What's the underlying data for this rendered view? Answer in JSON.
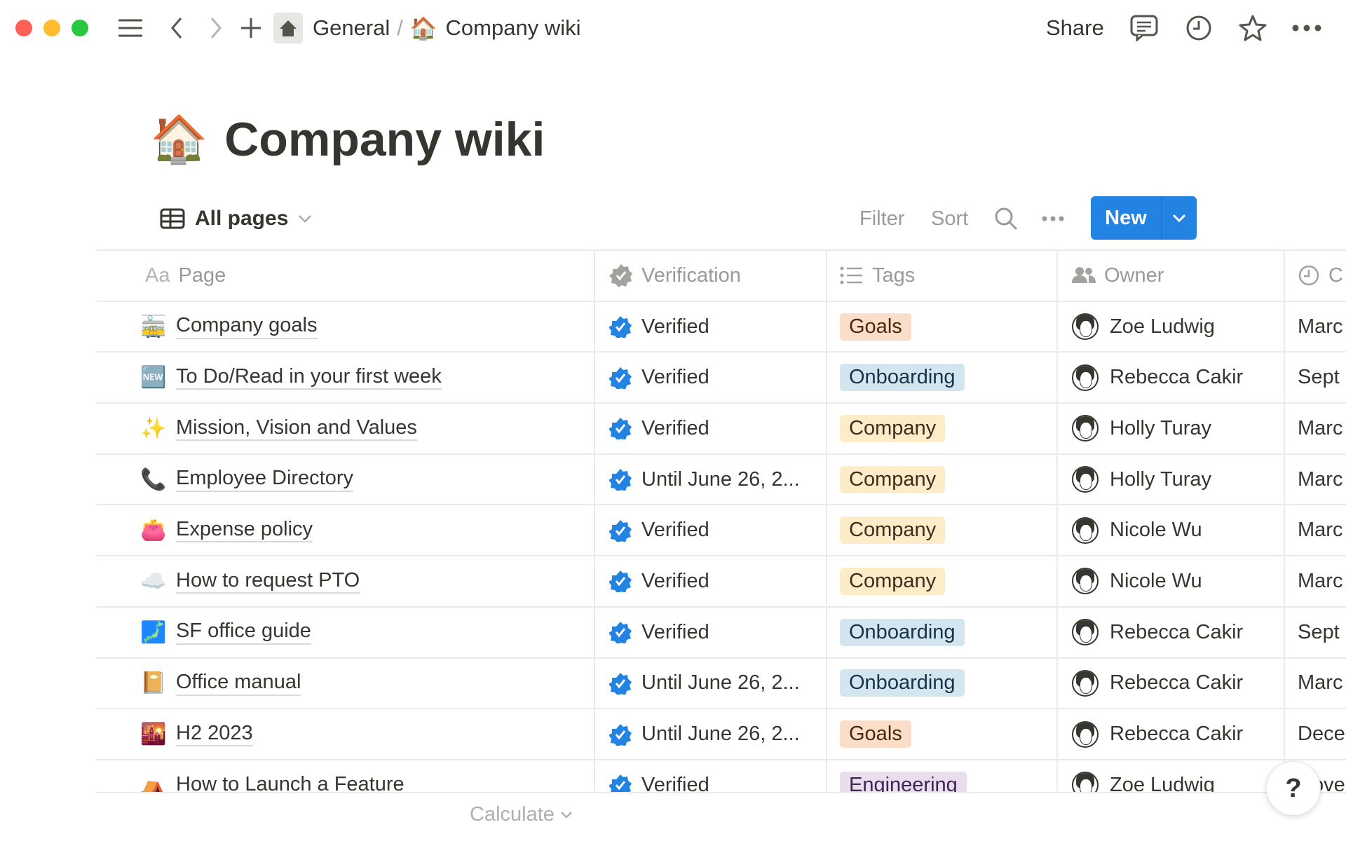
{
  "window": {
    "traffic_colors": [
      "#ff5f57",
      "#febc2e",
      "#28c840"
    ]
  },
  "topbar": {
    "breadcrumb": [
      {
        "label": "General"
      },
      {
        "label": "Company wiki",
        "icon": "🏠"
      }
    ],
    "separator": "/",
    "share_label": "Share"
  },
  "page": {
    "icon": "🏠",
    "title": "Company wiki"
  },
  "view": {
    "name": "All pages",
    "filter_label": "Filter",
    "sort_label": "Sort",
    "new_label": "New",
    "accent": "#2383e2"
  },
  "table": {
    "columns": [
      {
        "label": "Page",
        "icon": "Aa"
      },
      {
        "label": "Verification"
      },
      {
        "label": "Tags"
      },
      {
        "label": "Owner"
      },
      {
        "label": "C"
      }
    ],
    "rows": [
      {
        "icon": "🚋",
        "page": "Company goals",
        "verification": "Verified",
        "tag": "Goals",
        "owner": "Zoe Ludwig",
        "date": "Marc"
      },
      {
        "icon": "🆕",
        "page": "To Do/Read in your first week",
        "verification": "Verified",
        "tag": "Onboarding",
        "owner": "Rebecca Cakir",
        "date": "Sept"
      },
      {
        "icon": "✨",
        "page": "Mission, Vision and Values",
        "verification": "Verified",
        "tag": "Company",
        "owner": "Holly Turay",
        "date": "Marc"
      },
      {
        "icon": "📞",
        "page": "Employee Directory",
        "verification": "Until June 26, 2...",
        "tag": "Company",
        "owner": "Holly Turay",
        "date": "Marc"
      },
      {
        "icon": "👛",
        "page": "Expense policy",
        "verification": "Verified",
        "tag": "Company",
        "owner": "Nicole Wu",
        "date": "Marc"
      },
      {
        "icon": "☁️",
        "page": "How to request PTO",
        "verification": "Verified",
        "tag": "Company",
        "owner": "Nicole Wu",
        "date": "Marc"
      },
      {
        "icon": "🗾",
        "page": "SF office guide",
        "verification": "Verified",
        "tag": "Onboarding",
        "owner": "Rebecca Cakir",
        "date": "Sept"
      },
      {
        "icon": "📔",
        "page": "Office manual",
        "verification": "Until June 26, 2...",
        "tag": "Onboarding",
        "owner": "Rebecca Cakir",
        "date": "Marc"
      },
      {
        "icon": "🌇",
        "page": "H2 2023",
        "verification": "Until June 26, 2...",
        "tag": "Goals",
        "owner": "Rebecca Cakir",
        "date": "Dece"
      },
      {
        "icon": "⛺",
        "page": "How to Launch a Feature",
        "verification": "Verified",
        "tag": "Engineering",
        "owner": "Zoe Ludwig",
        "date": "Nove"
      }
    ],
    "tag_colors": {
      "Goals": {
        "bg": "#fadec9",
        "fg": "#49290e"
      },
      "Onboarding": {
        "bg": "#d3e5ef",
        "fg": "#183347"
      },
      "Company": {
        "bg": "#fdecc8",
        "fg": "#402c1b"
      },
      "Engineering": {
        "bg": "#e8deee",
        "fg": "#412454"
      }
    }
  },
  "footer": {
    "calculate_label": "Calculate",
    "help_label": "?"
  }
}
